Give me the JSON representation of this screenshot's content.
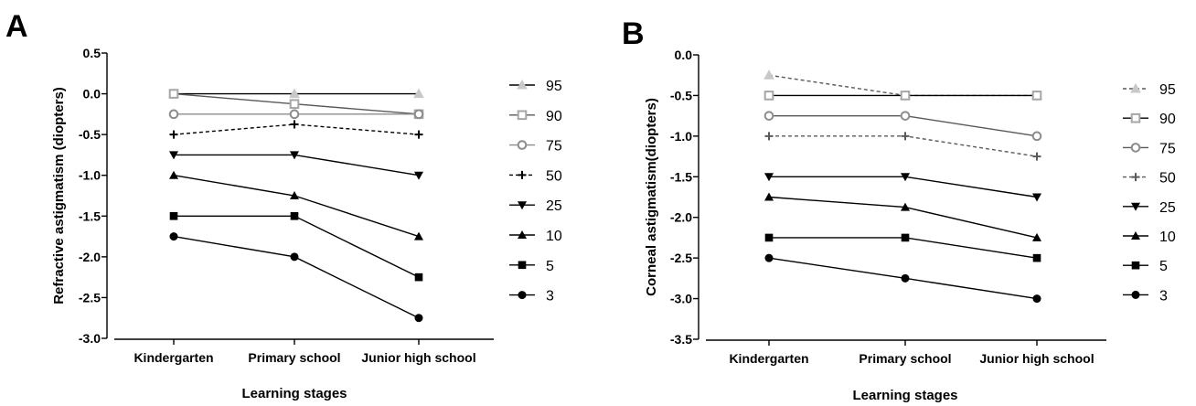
{
  "chart_data": [
    {
      "panel": "A",
      "type": "line",
      "categories": [
        "Kindergarten",
        "Primary school",
        "Junior high school"
      ],
      "xlabel": "Learning stages",
      "ylabel": "Refractive astigmatism (diopters)",
      "ylim": [
        -3.0,
        0.5
      ],
      "yticks": [
        "0.5",
        "0.0",
        "-0.5",
        "-1.0",
        "-1.5",
        "-2.0",
        "-2.5",
        "-3.0"
      ],
      "grid": false,
      "legend_position": "right",
      "series": [
        {
          "name": "95",
          "values": [
            0.0,
            0.0,
            0.0
          ],
          "marker": "triangle-open",
          "color": "#c8c8c8",
          "line_color": "#000000",
          "dash": false
        },
        {
          "name": "90",
          "values": [
            0.0,
            -0.125,
            -0.25
          ],
          "marker": "square-open",
          "color": "#a6a6a6",
          "line_color": "#595959",
          "dash": false
        },
        {
          "name": "75",
          "values": [
            -0.25,
            -0.25,
            -0.25
          ],
          "marker": "circle-open",
          "color": "#8c8c8c",
          "line_color": "#8c8c8c",
          "dash": false
        },
        {
          "name": "50",
          "values": [
            -0.5,
            -0.375,
            -0.5
          ],
          "marker": "plus",
          "color": "#000000",
          "line_color": "#000000",
          "dash": true
        },
        {
          "name": "25",
          "values": [
            -0.75,
            -0.75,
            -1.0
          ],
          "marker": "triangle-down",
          "color": "#000000",
          "line_color": "#000000",
          "dash": false
        },
        {
          "name": "10",
          "values": [
            -1.0,
            -1.25,
            -1.75
          ],
          "marker": "triangle-up",
          "color": "#000000",
          "line_color": "#000000",
          "dash": false
        },
        {
          "name": "5",
          "values": [
            -1.5,
            -1.5,
            -2.25
          ],
          "marker": "square",
          "color": "#000000",
          "line_color": "#000000",
          "dash": false
        },
        {
          "name": "3",
          "values": [
            -1.75,
            -2.0,
            -2.75
          ],
          "marker": "circle",
          "color": "#000000",
          "line_color": "#000000",
          "dash": false
        }
      ]
    },
    {
      "panel": "B",
      "type": "line",
      "categories": [
        "Kindergarten",
        "Primary school",
        "Junior high school"
      ],
      "xlabel": "Learning stages",
      "ylabel": "Corneal astigmatism(diopters)",
      "ylim": [
        -3.5,
        0.0
      ],
      "yticks": [
        "0.0",
        "-0.5",
        "-1.0",
        "-1.5",
        "-2.0",
        "-2.5",
        "-3.0",
        "-3.5"
      ],
      "grid": false,
      "legend_position": "right",
      "series": [
        {
          "name": "95",
          "values": [
            -0.25,
            -0.5,
            -0.5
          ],
          "marker": "triangle-open",
          "color": "#c8c8c8",
          "line_color": "#595959",
          "dash": true
        },
        {
          "name": "90",
          "values": [
            -0.5,
            -0.5,
            -0.5
          ],
          "marker": "square-open",
          "color": "#a6a6a6",
          "line_color": "#000000",
          "dash": false
        },
        {
          "name": "75",
          "values": [
            -0.75,
            -0.75,
            -1.0
          ],
          "marker": "circle-open",
          "color": "#8c8c8c",
          "line_color": "#595959",
          "dash": false
        },
        {
          "name": "50",
          "values": [
            -1.0,
            -1.0,
            -1.25
          ],
          "marker": "plus",
          "color": "#595959",
          "line_color": "#595959",
          "dash": true
        },
        {
          "name": "25",
          "values": [
            -1.5,
            -1.5,
            -1.75
          ],
          "marker": "triangle-down",
          "color": "#000000",
          "line_color": "#000000",
          "dash": false
        },
        {
          "name": "10",
          "values": [
            -1.75,
            -1.875,
            -2.25
          ],
          "marker": "triangle-up",
          "color": "#000000",
          "line_color": "#000000",
          "dash": false
        },
        {
          "name": "5",
          "values": [
            -2.25,
            -2.25,
            -2.5
          ],
          "marker": "square",
          "color": "#000000",
          "line_color": "#000000",
          "dash": false
        },
        {
          "name": "3",
          "values": [
            -2.5,
            -2.75,
            -3.0
          ],
          "marker": "circle",
          "color": "#000000",
          "line_color": "#000000",
          "dash": false
        }
      ]
    }
  ]
}
